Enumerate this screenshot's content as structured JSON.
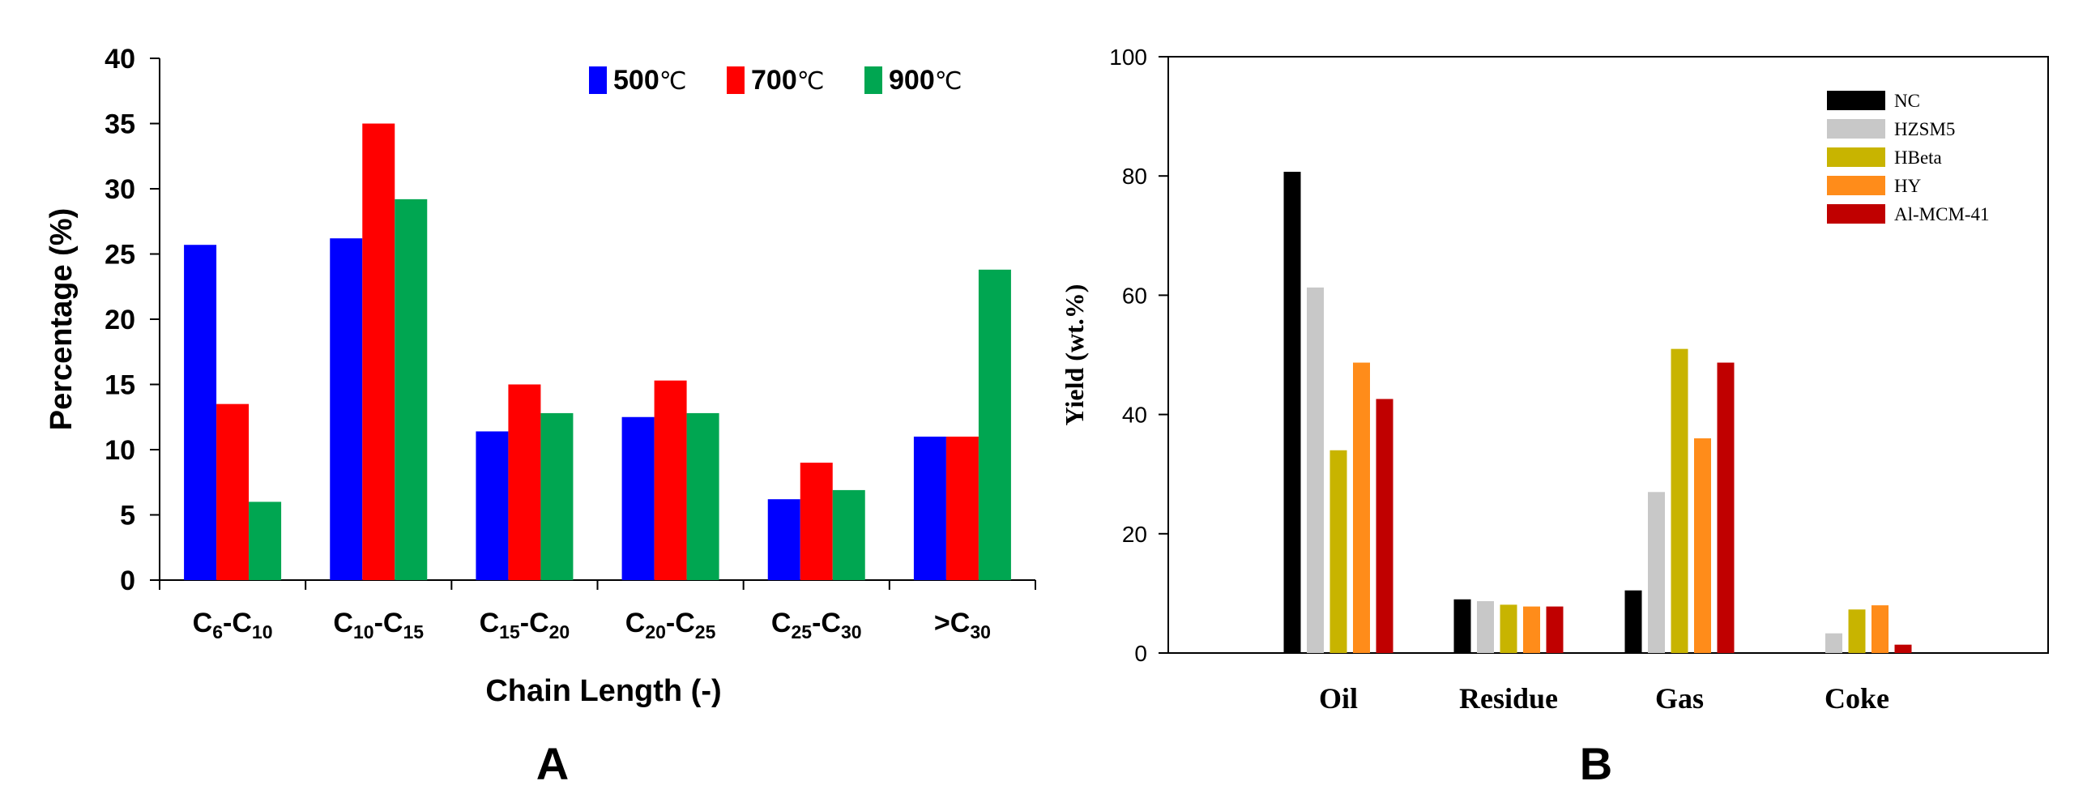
{
  "chart_data": [
    {
      "type": "bar",
      "panel_label": "A",
      "xlabel": "Chain Length (-)",
      "ylabel": "Percentage (%)",
      "ylim": [
        0,
        40
      ],
      "yticks": [
        0,
        5,
        10,
        15,
        20,
        25,
        30,
        35,
        40
      ],
      "categories": [
        {
          "base": "C",
          "sub": "6",
          "sep": "-",
          "base2": "C",
          "sub2": "10"
        },
        {
          "base": "C",
          "sub": "10",
          "sep": "-",
          "base2": "C",
          "sub2": "15"
        },
        {
          "base": "C",
          "sub": "15",
          "sep": "-",
          "base2": "C",
          "sub2": "20"
        },
        {
          "base": "C",
          "sub": "20",
          "sep": "-",
          "base2": "C",
          "sub2": "25"
        },
        {
          "base": "C",
          "sub": "25",
          "sep": "-",
          "base2": "C",
          "sub2": "30"
        },
        {
          "base": ">C",
          "sub": "30",
          "sep": "",
          "base2": "",
          "sub2": ""
        }
      ],
      "legend": {
        "placement": "top-right",
        "unit": "℃"
      },
      "grid": false,
      "series": [
        {
          "name": "500",
          "color": "#0000ff",
          "values": [
            25.7,
            26.2,
            11.4,
            12.5,
            6.2,
            11.0
          ]
        },
        {
          "name": "700",
          "color": "#ff0000",
          "values": [
            13.5,
            35.0,
            15.0,
            15.3,
            9.0,
            11.0
          ]
        },
        {
          "name": "900",
          "color": "#00a651",
          "values": [
            6.0,
            29.2,
            12.8,
            12.8,
            6.9,
            23.8
          ]
        }
      ]
    },
    {
      "type": "bar",
      "panel_label": "B",
      "xlabel": "",
      "ylabel": "Yield (wt.%)",
      "ylim": [
        0,
        100
      ],
      "yticks": [
        0,
        20,
        40,
        60,
        80,
        100
      ],
      "categories": [
        "Oil",
        "Residue",
        "Gas",
        "Coke"
      ],
      "legend": {
        "placement": "top-right"
      },
      "grid": false,
      "series": [
        {
          "name": "NC",
          "color": "#000000",
          "values": [
            80.7,
            9.0,
            10.5,
            0.0
          ]
        },
        {
          "name": "HZSM5",
          "color": "#c8c8c8",
          "values": [
            61.3,
            8.7,
            27.0,
            3.3
          ]
        },
        {
          "name": "HBeta",
          "color": "#c8b400",
          "values": [
            34.0,
            8.1,
            51.0,
            7.3
          ]
        },
        {
          "name": "HY",
          "color": "#ff8c1a",
          "values": [
            48.7,
            7.8,
            36.0,
            8.0
          ]
        },
        {
          "name": "Al-MCM-41",
          "color": "#c00000",
          "values": [
            42.6,
            7.8,
            48.7,
            1.4
          ]
        }
      ]
    }
  ]
}
